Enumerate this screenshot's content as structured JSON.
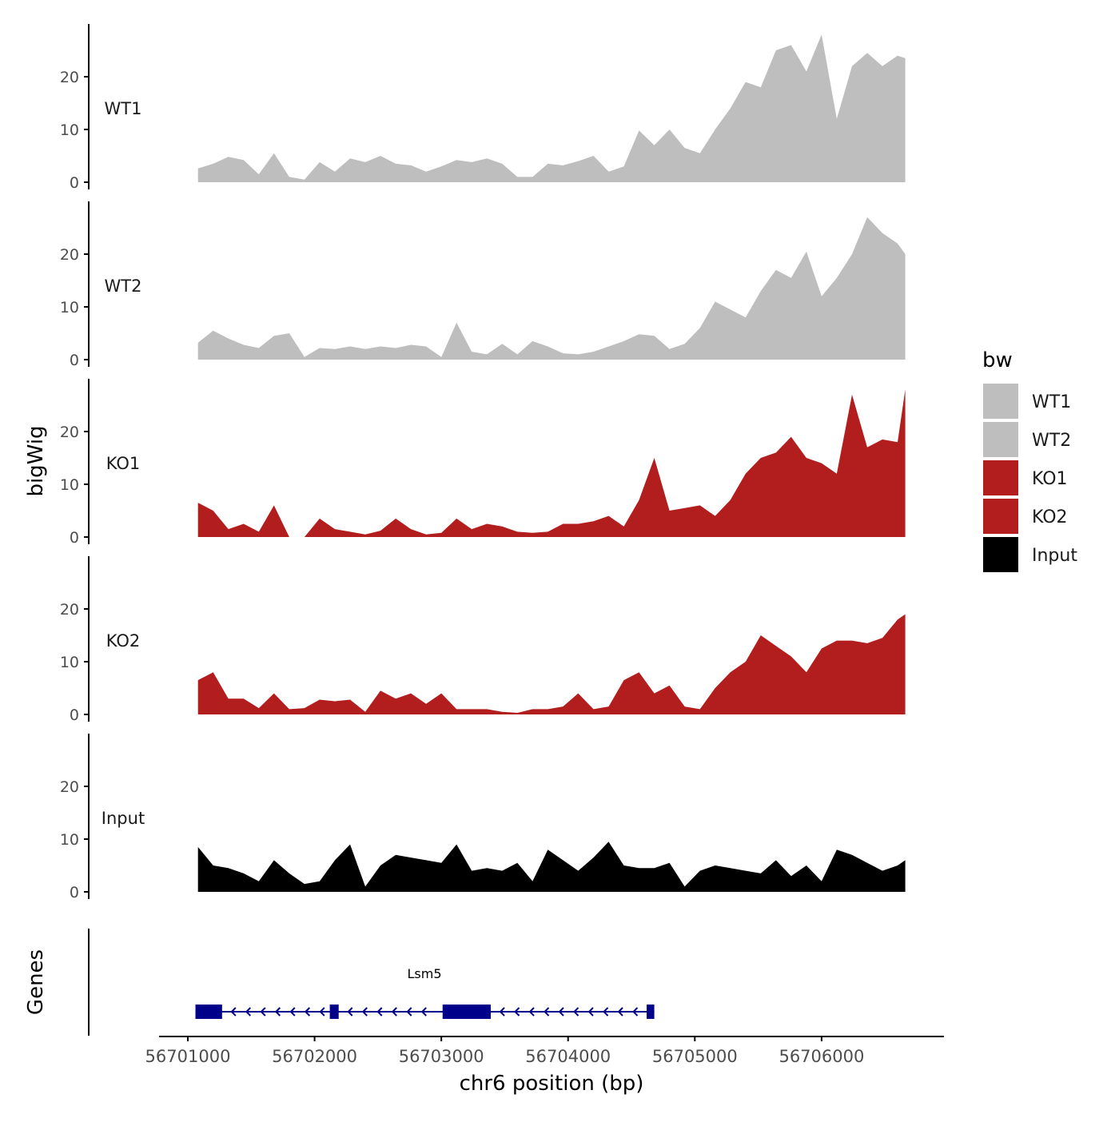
{
  "chart_data": {
    "type": "area",
    "title": "",
    "xlabel": "chr6 position (bp)",
    "ylabel": "bigWig",
    "genes_label": "Genes",
    "x_ticks": [
      56701000,
      56702000,
      56703000,
      56704000,
      56705000,
      56706000
    ],
    "x_tick_labels": [
      "56701000",
      "56702000",
      "56703000",
      "56704000",
      "56705000",
      "56706000"
    ],
    "xlim": [
      56700780,
      56706940
    ],
    "ylim": [
      0,
      30
    ],
    "y_ticks": [
      0,
      10,
      20
    ],
    "y_tick_labels": [
      "0",
      "10",
      "20"
    ],
    "legend": {
      "title": "bw",
      "position": "right",
      "entries": [
        {
          "label": "WT1",
          "color": "#bebebe"
        },
        {
          "label": "WT2",
          "color": "#bebebe"
        },
        {
          "label": "KO1",
          "color": "#b21e1e"
        },
        {
          "label": "KO2",
          "color": "#b21e1e"
        },
        {
          "label": "Input",
          "color": "#000000"
        }
      ]
    },
    "track_x": [
      56701080,
      56701200,
      56701320,
      56701440,
      56701560,
      56701680,
      56701800,
      56701920,
      56702040,
      56702160,
      56702280,
      56702400,
      56702520,
      56702640,
      56702760,
      56702880,
      56703000,
      56703120,
      56703240,
      56703360,
      56703480,
      56703600,
      56703720,
      56703840,
      56703960,
      56704080,
      56704200,
      56704320,
      56704440,
      56704560,
      56704680,
      56704800,
      56704920,
      56705040,
      56705160,
      56705280,
      56705400,
      56705520,
      56705640,
      56705760,
      56705880,
      56706000,
      56706120,
      56706240,
      56706360,
      56706480,
      56706600,
      56706660
    ],
    "series": [
      {
        "name": "WT1",
        "color": "#bebebe",
        "values": [
          2.6,
          3.5,
          4.8,
          4.2,
          1.5,
          5.5,
          1.0,
          0.5,
          3.8,
          2.0,
          4.5,
          3.8,
          5.0,
          3.5,
          3.2,
          2.0,
          3.0,
          4.2,
          3.8,
          4.5,
          3.5,
          1.0,
          1.0,
          3.5,
          3.2,
          4.0,
          5.0,
          2.0,
          3.0,
          9.8,
          7.0,
          10.0,
          6.5,
          5.5,
          10.0,
          14.0,
          19.0,
          18.0,
          25.0,
          26.0,
          21.0,
          28.0,
          12.0,
          22.0,
          24.5,
          22.0,
          24.0,
          23.5
        ]
      },
      {
        "name": "WT2",
        "color": "#bebebe",
        "values": [
          3.2,
          5.5,
          4.0,
          2.8,
          2.2,
          4.5,
          5.0,
          0.5,
          2.2,
          2.0,
          2.5,
          2.0,
          2.5,
          2.2,
          2.8,
          2.5,
          0.5,
          7.0,
          1.5,
          1.0,
          3.0,
          1.0,
          3.5,
          2.5,
          1.2,
          1.0,
          1.5,
          2.5,
          3.5,
          4.8,
          4.5,
          2.0,
          3.0,
          6.0,
          11.0,
          9.5,
          8.0,
          13.0,
          17.0,
          15.5,
          20.5,
          12.0,
          15.5,
          20.0,
          27.0,
          24.0,
          22.0,
          20.0
        ]
      },
      {
        "name": "KO1",
        "color": "#b21e1e",
        "values": [
          6.5,
          5.0,
          1.5,
          2.5,
          1.0,
          6.0,
          0.0,
          0.0,
          3.5,
          1.5,
          1.0,
          0.5,
          1.2,
          3.5,
          1.5,
          0.5,
          0.8,
          3.5,
          1.5,
          2.5,
          2.0,
          1.0,
          0.8,
          1.0,
          2.5,
          2.5,
          3.0,
          4.0,
          2.0,
          7.0,
          15.0,
          5.0,
          5.5,
          6.0,
          4.0,
          7.0,
          12.0,
          15.0,
          16.0,
          19.0,
          15.0,
          14.0,
          12.0,
          27.0,
          17.0,
          18.5,
          18.0,
          28.0
        ]
      },
      {
        "name": "KO2",
        "color": "#b21e1e",
        "values": [
          6.5,
          8.0,
          3.0,
          3.0,
          1.2,
          4.0,
          1.0,
          1.2,
          2.8,
          2.5,
          2.8,
          0.5,
          4.5,
          3.0,
          4.0,
          2.0,
          4.0,
          1.0,
          1.0,
          1.0,
          0.5,
          0.3,
          1.0,
          1.0,
          1.5,
          4.0,
          1.0,
          1.5,
          6.5,
          8.0,
          4.0,
          5.5,
          1.5,
          1.0,
          5.0,
          8.0,
          10.0,
          15.0,
          13.0,
          11.0,
          8.0,
          12.5,
          14.0,
          14.0,
          13.5,
          14.5,
          18.0,
          19.0
        ]
      },
      {
        "name": "Input",
        "color": "#000000",
        "values": [
          8.5,
          5.0,
          4.5,
          3.5,
          2.0,
          6.0,
          3.5,
          1.5,
          2.0,
          6.0,
          9.0,
          1.0,
          5.0,
          7.0,
          6.5,
          6.0,
          5.5,
          9.0,
          4.0,
          4.5,
          4.0,
          5.5,
          2.0,
          8.0,
          6.0,
          4.0,
          6.5,
          9.5,
          5.0,
          4.5,
          4.5,
          5.5,
          1.0,
          4.0,
          5.0,
          4.5,
          4.0,
          3.5,
          6.0,
          3.0,
          5.0,
          2.0,
          8.0,
          7.0,
          5.5,
          4.0,
          5.0,
          6.0
        ]
      }
    ],
    "gene_track": {
      "gene_name": "Lsm5",
      "color": "#00008b",
      "strand": "-",
      "start": 56701060,
      "end": 56704680,
      "exons": [
        [
          56701060,
          56701270
        ],
        [
          56702120,
          56702190
        ],
        [
          56703010,
          56703390
        ],
        [
          56704620,
          56704680
        ]
      ]
    }
  }
}
